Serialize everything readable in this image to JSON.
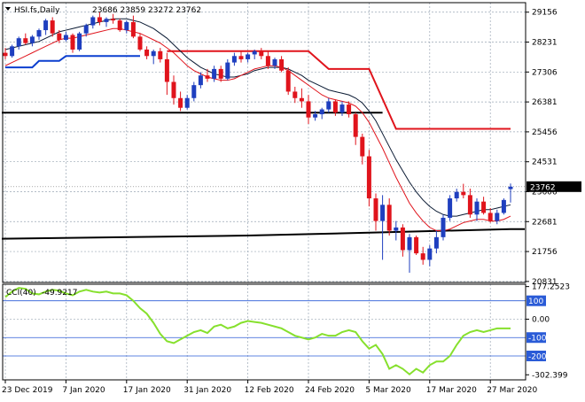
{
  "header": {
    "symbol": "HSI.fs,Daily",
    "ohlc": "23686 23859 23272 23762"
  },
  "cci_header": {
    "label": "CCI(40)",
    "value": "-49.9217"
  },
  "colors": {
    "bull": "#1f3fbf",
    "bear": "#e0141c",
    "ma_fast": "#e0141c",
    "ma_slow": "#0a1a33",
    "support": "#000000",
    "resistance": "#e0141c",
    "stop_blue": "#0b3fcf",
    "cci": "#86e02d",
    "level_line": "#2a5bd7"
  },
  "chart_data": [
    {
      "type": "candlestick",
      "ylim": [
        20800,
        29450
      ],
      "price_ticks": [
        "29156",
        "28231",
        "27306",
        "26381",
        "25456",
        "24531",
        "23606",
        "22681",
        "21756",
        "20831"
      ],
      "current_price": "23762",
      "date_labels": [
        {
          "i": 0,
          "label": "23 Dec 2019"
        },
        {
          "i": 9,
          "label": "7 Jan 2020"
        },
        {
          "i": 18,
          "label": "17 Jan 2020"
        },
        {
          "i": 27,
          "label": "31 Jan 2020"
        },
        {
          "i": 36,
          "label": "12 Feb 2020"
        },
        {
          "i": 45,
          "label": "24 Feb 2020"
        },
        {
          "i": 54,
          "label": "5 Mar 2020"
        },
        {
          "i": 63,
          "label": "17 Mar 2020"
        },
        {
          "i": 72,
          "label": "27 Mar 2020"
        }
      ],
      "candles": [
        [
          27900,
          28050,
          27700,
          27800
        ],
        [
          27800,
          28150,
          27750,
          28100
        ],
        [
          28100,
          28400,
          28000,
          28350
        ],
        [
          28350,
          28500,
          28150,
          28200
        ],
        [
          28200,
          28450,
          28100,
          28400
        ],
        [
          28400,
          28650,
          28300,
          28600
        ],
        [
          28600,
          28950,
          28450,
          28900
        ],
        [
          28900,
          29000,
          28400,
          28500
        ],
        [
          28500,
          28600,
          28200,
          28300
        ],
        [
          28300,
          28550,
          28250,
          28450
        ],
        [
          28450,
          28500,
          27900,
          28000
        ],
        [
          28000,
          28550,
          27950,
          28500
        ],
        [
          28500,
          28800,
          28400,
          28750
        ],
        [
          28750,
          29050,
          28650,
          29000
        ],
        [
          29000,
          29150,
          28750,
          28850
        ],
        [
          28850,
          29000,
          28700,
          28950
        ],
        [
          28950,
          29100,
          28800,
          28900
        ],
        [
          28900,
          28950,
          28550,
          28600
        ],
        [
          28600,
          28900,
          28500,
          28850
        ],
        [
          28850,
          29050,
          28350,
          28400
        ],
        [
          28400,
          28500,
          27950,
          28000
        ],
        [
          28000,
          28100,
          27700,
          27800
        ],
        [
          27800,
          28000,
          27550,
          27950
        ],
        [
          27950,
          28050,
          27600,
          27700
        ],
        [
          27700,
          27900,
          26600,
          27000
        ],
        [
          27000,
          27200,
          26300,
          26500
        ],
        [
          26500,
          26700,
          26100,
          26200
        ],
        [
          26200,
          26600,
          26150,
          26500
        ],
        [
          26500,
          27000,
          26400,
          26900
        ],
        [
          26900,
          27300,
          26800,
          27200
        ],
        [
          27200,
          27400,
          27000,
          27100
        ],
        [
          27100,
          27500,
          27000,
          27400
        ],
        [
          27400,
          27500,
          27000,
          27100
        ],
        [
          27100,
          27700,
          27050,
          27600
        ],
        [
          27600,
          27900,
          27500,
          27800
        ],
        [
          27800,
          27950,
          27600,
          27700
        ],
        [
          27700,
          27900,
          27600,
          27850
        ],
        [
          27850,
          28000,
          27700,
          27950
        ],
        [
          27950,
          28050,
          27700,
          27800
        ],
        [
          27800,
          27950,
          27400,
          27500
        ],
        [
          27500,
          27750,
          27400,
          27700
        ],
        [
          27700,
          27800,
          27300,
          27350
        ],
        [
          27350,
          27450,
          26600,
          26700
        ],
        [
          26700,
          26850,
          26350,
          26500
        ],
        [
          26500,
          26800,
          26200,
          26400
        ],
        [
          26400,
          26600,
          25700,
          25900
        ],
        [
          25900,
          26100,
          25800,
          26000
        ],
        [
          26000,
          26200,
          25850,
          26150
        ],
        [
          26150,
          26500,
          26050,
          26400
        ],
        [
          26400,
          26450,
          25950,
          26050
        ],
        [
          26050,
          26400,
          25950,
          26300
        ],
        [
          26300,
          26400,
          25900,
          26000
        ],
        [
          26000,
          26050,
          25050,
          25300
        ],
        [
          25300,
          25400,
          24450,
          24700
        ],
        [
          24700,
          24900,
          23150,
          23400
        ],
        [
          23400,
          23550,
          22400,
          22700
        ],
        [
          22700,
          23500,
          21500,
          23200
        ],
        [
          23200,
          23400,
          22250,
          22400
        ],
        [
          22400,
          22700,
          22100,
          22500
        ],
        [
          22500,
          22600,
          21600,
          21800
        ],
        [
          21800,
          22300,
          21100,
          22200
        ],
        [
          22200,
          22250,
          21650,
          21700
        ],
        [
          21700,
          21900,
          21350,
          21500
        ],
        [
          21500,
          21950,
          21300,
          21850
        ],
        [
          21850,
          22400,
          21700,
          22200
        ],
        [
          22200,
          22900,
          22100,
          22800
        ],
        [
          22800,
          23500,
          22700,
          23400
        ],
        [
          23400,
          23700,
          23300,
          23600
        ],
        [
          23600,
          23850,
          23400,
          23500
        ],
        [
          23500,
          23700,
          22800,
          22900
        ],
        [
          22900,
          23400,
          22700,
          23300
        ],
        [
          23300,
          23450,
          22900,
          22950
        ],
        [
          22950,
          23100,
          22650,
          22700
        ],
        [
          22700,
          23050,
          22600,
          22950
        ],
        [
          22950,
          23400,
          22900,
          23350
        ],
        [
          23686,
          23859,
          23272,
          23762
        ]
      ],
      "ma_fast": [
        27500,
        27600,
        27700,
        27800,
        27900,
        28000,
        28100,
        28200,
        28300,
        28350,
        28350,
        28400,
        28450,
        28500,
        28550,
        28600,
        28650,
        28650,
        28600,
        28550,
        28500,
        28400,
        28300,
        28200,
        28050,
        27900,
        27700,
        27500,
        27350,
        27250,
        27150,
        27100,
        27050,
        27050,
        27100,
        27200,
        27300,
        27400,
        27450,
        27500,
        27500,
        27450,
        27350,
        27200,
        27050,
        26900,
        26750,
        26600,
        26500,
        26450,
        26400,
        26350,
        26250,
        26050,
        25750,
        25350,
        24950,
        24500,
        24050,
        23650,
        23250,
        22950,
        22700,
        22500,
        22400,
        22400,
        22450,
        22550,
        22650,
        22700,
        22750,
        22750,
        22700,
        22700,
        22750,
        22850
      ],
      "ma_slow": [
        28000,
        28050,
        28100,
        28150,
        28200,
        28250,
        28350,
        28450,
        28550,
        28600,
        28650,
        28700,
        28750,
        28800,
        28850,
        28900,
        28950,
        28950,
        28950,
        28900,
        28850,
        28750,
        28650,
        28500,
        28350,
        28150,
        27950,
        27750,
        27600,
        27450,
        27350,
        27250,
        27200,
        27150,
        27150,
        27200,
        27250,
        27350,
        27400,
        27450,
        27450,
        27450,
        27400,
        27300,
        27200,
        27050,
        26950,
        26850,
        26750,
        26700,
        26650,
        26600,
        26500,
        26350,
        26100,
        25800,
        25400,
        25000,
        24600,
        24250,
        23900,
        23600,
        23350,
        23150,
        23000,
        22900,
        22850,
        22850,
        22900,
        22950,
        23000,
        23050,
        23050,
        23100,
        23150,
        23200
      ],
      "support_upper": {
        "from": 0,
        "to": 56,
        "value": 26050
      },
      "support_lower": [
        {
          "i": 0,
          "v": 22150
        },
        {
          "i": 36,
          "v": 22250
        },
        {
          "i": 56,
          "v": 22350
        },
        {
          "i": 75,
          "v": 22450
        }
      ],
      "resistance_steps": [
        {
          "i": 24,
          "v": 27950
        },
        {
          "i": 45,
          "v": 27950
        },
        {
          "i": 48,
          "v": 27400
        },
        {
          "i": 54,
          "v": 27400
        },
        {
          "i": 58,
          "v": 25550
        },
        {
          "i": 75,
          "v": 25550
        }
      ],
      "stop_steps": [
        {
          "i": 0,
          "v": 27450
        },
        {
          "i": 4,
          "v": 27450
        },
        {
          "i": 5,
          "v": 27650
        },
        {
          "i": 8,
          "v": 27650
        },
        {
          "i": 9,
          "v": 27800
        },
        {
          "i": 20,
          "v": 27800
        }
      ]
    },
    {
      "type": "line",
      "series": [
        {
          "name": "CCI(40)",
          "values": [
            120,
            150,
            170,
            165,
            140,
            135,
            150,
            160,
            155,
            140,
            130,
            150,
            160,
            150,
            145,
            150,
            140,
            140,
            130,
            100,
            60,
            30,
            -20,
            -80,
            -120,
            -130,
            -110,
            -90,
            -70,
            -60,
            -75,
            -40,
            -30,
            -50,
            -40,
            -20,
            -10,
            -15,
            -20,
            -30,
            -40,
            -50,
            -70,
            -90,
            -100,
            -110,
            -100,
            -80,
            -90,
            -90,
            -70,
            -60,
            -70,
            -120,
            -160,
            -140,
            -190,
            -270,
            -250,
            -270,
            -300,
            -270,
            -290,
            -250,
            -230,
            -230,
            -200,
            -140,
            -90,
            -70,
            -60,
            -70,
            -60,
            -50,
            -50,
            -49.9217
          ]
        }
      ],
      "ylim": [
        -330,
        190
      ],
      "ticks": [
        {
          "value": 177.2523,
          "label": "177.2523"
        },
        {
          "value": 100,
          "label": "100"
        },
        {
          "value": 0,
          "label": "0.00"
        },
        {
          "value": -100,
          "label": "-100"
        },
        {
          "value": -200,
          "label": "-200"
        },
        {
          "value": -302.399,
          "label": "-302.399"
        }
      ],
      "levels": [
        100,
        -100,
        -200
      ]
    }
  ]
}
